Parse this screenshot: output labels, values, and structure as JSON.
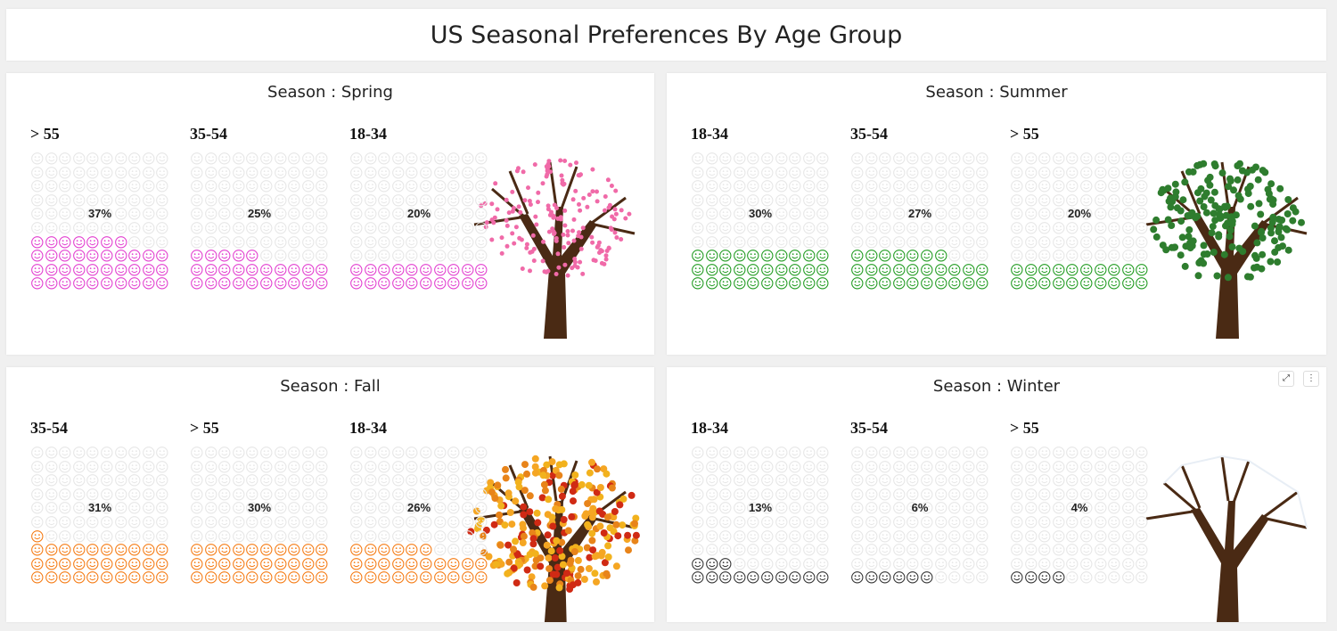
{
  "title": "US Seasonal Preferences By Age Group",
  "chart_data": [
    {
      "type": "waffle",
      "title": "Season : Spring",
      "color": "#e23ccf",
      "groups": [
        {
          "label": "> 55",
          "value": 37,
          "text": "37%"
        },
        {
          "label": "35-54",
          "value": 25,
          "text": "25%"
        },
        {
          "label": "18-34",
          "value": 20,
          "text": "20%"
        }
      ]
    },
    {
      "type": "waffle",
      "title": "Season : Summer",
      "color": "#1e9a1e",
      "groups": [
        {
          "label": "18-34",
          "value": 30,
          "text": "30%"
        },
        {
          "label": "35-54",
          "value": 27,
          "text": "27%"
        },
        {
          "label": "> 55",
          "value": 20,
          "text": "20%"
        }
      ]
    },
    {
      "type": "waffle",
      "title": "Season : Fall",
      "color": "#f57a12",
      "groups": [
        {
          "label": "35-54",
          "value": 31,
          "text": "31%"
        },
        {
          "label": "> 55",
          "value": 30,
          "text": "30%"
        },
        {
          "label": "18-34",
          "value": 26,
          "text": "26%"
        }
      ]
    },
    {
      "type": "waffle",
      "title": "Season : Winter",
      "color": "#333333",
      "groups": [
        {
          "label": "18-34",
          "value": 13,
          "text": "13%"
        },
        {
          "label": "35-54",
          "value": 6,
          "text": "6%"
        },
        {
          "label": "> 55",
          "value": 4,
          "text": "4%"
        }
      ]
    }
  ],
  "empty_color": "#e6e6e6",
  "tree_colors": [
    "#f06aa8",
    "#2e7d2e",
    "#e8841a",
    "#ffffff"
  ]
}
